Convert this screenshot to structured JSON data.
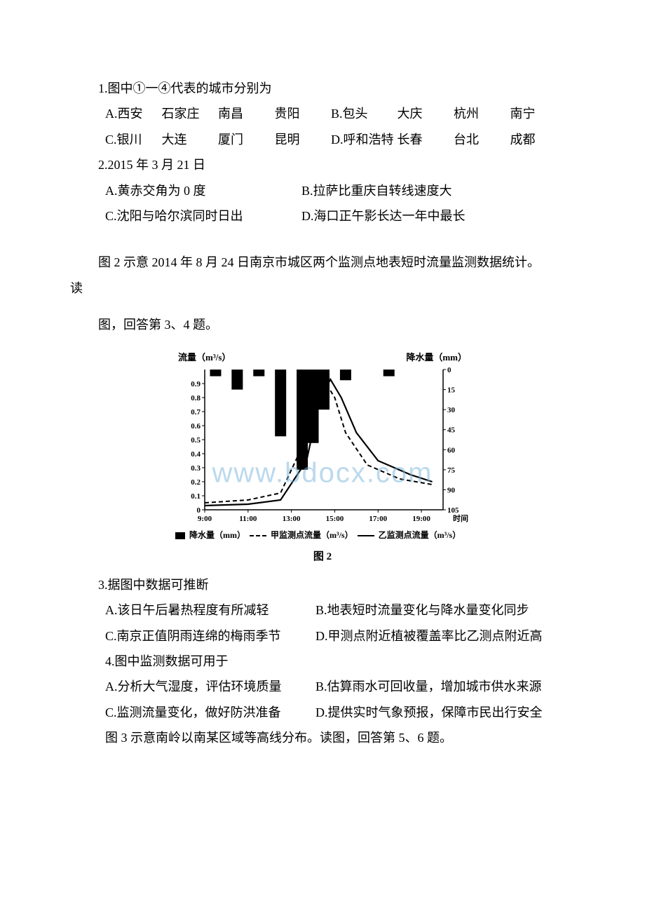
{
  "q1": {
    "stem": "1.图中①一④代表的城市分别为",
    "optA": {
      "label": "A.西安",
      "c1": "石家庄",
      "c2": "南昌",
      "c3": "贵阳"
    },
    "optB": {
      "label": "B.包头",
      "c1": "大庆",
      "c2": "杭州",
      "c3": "南宁"
    },
    "optC": {
      "label": "C.银川",
      "c1": "大连",
      "c2": "厦门",
      "c3": "昆明"
    },
    "optD": {
      "label": "D.呼和浩特",
      "c1": "长春",
      "c2": "台北",
      "c3": "成都"
    }
  },
  "q2": {
    "stem": "2.2015 年 3 月 21 日",
    "optA": "A.黄赤交角为 0 度",
    "optB": "B.拉萨比重庆自转线速度大",
    "optC": "C.沈阳与哈尔滨同时日出",
    "optD": "D.海口正午影长达一年中最长"
  },
  "intro34_a": "图 2 示意 2014 年 8 月 24 日南京市城区两个监测点地表短时流量监测数据统计。",
  "intro34_b": "读",
  "intro34_c": "图，回答第 3、4 题。",
  "figure": {
    "ylabel_left": "流量（m³/s）",
    "ylabel_right": "降水量（mm）",
    "x_ticks": [
      "9:00",
      "11:00",
      "13:00",
      "15:00",
      "17:00",
      "19:00"
    ],
    "x_end_label": "时间",
    "y_left_ticks": [
      0,
      0.1,
      0.2,
      0.3,
      0.4,
      0.5,
      0.6,
      0.7,
      0.8,
      0.9
    ],
    "y_right_ticks": [
      0,
      15,
      30,
      45,
      60,
      75,
      90,
      105
    ],
    "y_left_lim": [
      0,
      1.0
    ],
    "y_right_lim": [
      0,
      105
    ],
    "precip_bars": [
      {
        "t": 9.5,
        "mm": 5
      },
      {
        "t": 10.5,
        "mm": 15
      },
      {
        "t": 11.5,
        "mm": 5
      },
      {
        "t": 12.5,
        "mm": 50
      },
      {
        "t": 13.5,
        "mm": 75
      },
      {
        "t": 14.0,
        "mm": 55
      },
      {
        "t": 14.5,
        "mm": 30
      },
      {
        "t": 15.5,
        "mm": 8
      },
      {
        "t": 17.5,
        "mm": 5
      }
    ],
    "series_jia": [
      {
        "t": 9.0,
        "q": 0.05
      },
      {
        "t": 11.0,
        "q": 0.07
      },
      {
        "t": 12.5,
        "q": 0.12
      },
      {
        "t": 13.5,
        "q": 0.45
      },
      {
        "t": 14.0,
        "q": 0.8
      },
      {
        "t": 14.4,
        "q": 0.95
      },
      {
        "t": 15.0,
        "q": 0.8
      },
      {
        "t": 15.5,
        "q": 0.55
      },
      {
        "t": 16.5,
        "q": 0.32
      },
      {
        "t": 18.0,
        "q": 0.22
      },
      {
        "t": 19.5,
        "q": 0.18
      }
    ],
    "series_yi": [
      {
        "t": 9.0,
        "q": 0.03
      },
      {
        "t": 11.0,
        "q": 0.04
      },
      {
        "t": 12.5,
        "q": 0.07
      },
      {
        "t": 13.7,
        "q": 0.35
      },
      {
        "t": 14.3,
        "q": 0.78
      },
      {
        "t": 14.8,
        "q": 0.93
      },
      {
        "t": 15.3,
        "q": 0.8
      },
      {
        "t": 16.0,
        "q": 0.55
      },
      {
        "t": 17.0,
        "q": 0.35
      },
      {
        "t": 18.5,
        "q": 0.25
      },
      {
        "t": 19.5,
        "q": 0.2
      }
    ],
    "legend_precip": "降水量（mm）",
    "legend_jia": "甲监测点流量（m³/s）",
    "legend_yi": "乙监测点流量（m³/s）",
    "caption": "图 2",
    "watermark": "www.bdocx.com",
    "colors": {
      "bar": "#000000",
      "line": "#000000",
      "axis": "#000000",
      "bg": "#ffffff"
    }
  },
  "q3": {
    "stem": "3.据图中数据可推断",
    "optA": "A.该日午后暑热程度有所减轻",
    "optB": "B.地表短时流量变化与降水量变化同步",
    "optC": "C.南京正值阴雨连绵的梅雨季节",
    "optD": "D.甲测点附近植被覆盖率比乙测点附近高"
  },
  "q4": {
    "stem": "4.图中监测数据可用于",
    "optA": "A.分析大气湿度，评估环境质量",
    "optB": "B.估算雨水可回收量，增加城市供水来源",
    "optC": "C.监测流量变化，做好防洪准备",
    "optD": "D.提供实时气象预报，保障市民出行安全"
  },
  "intro56": "图 3 示意南岭以南某区域等高线分布。读图，回答第 5、6 题。"
}
